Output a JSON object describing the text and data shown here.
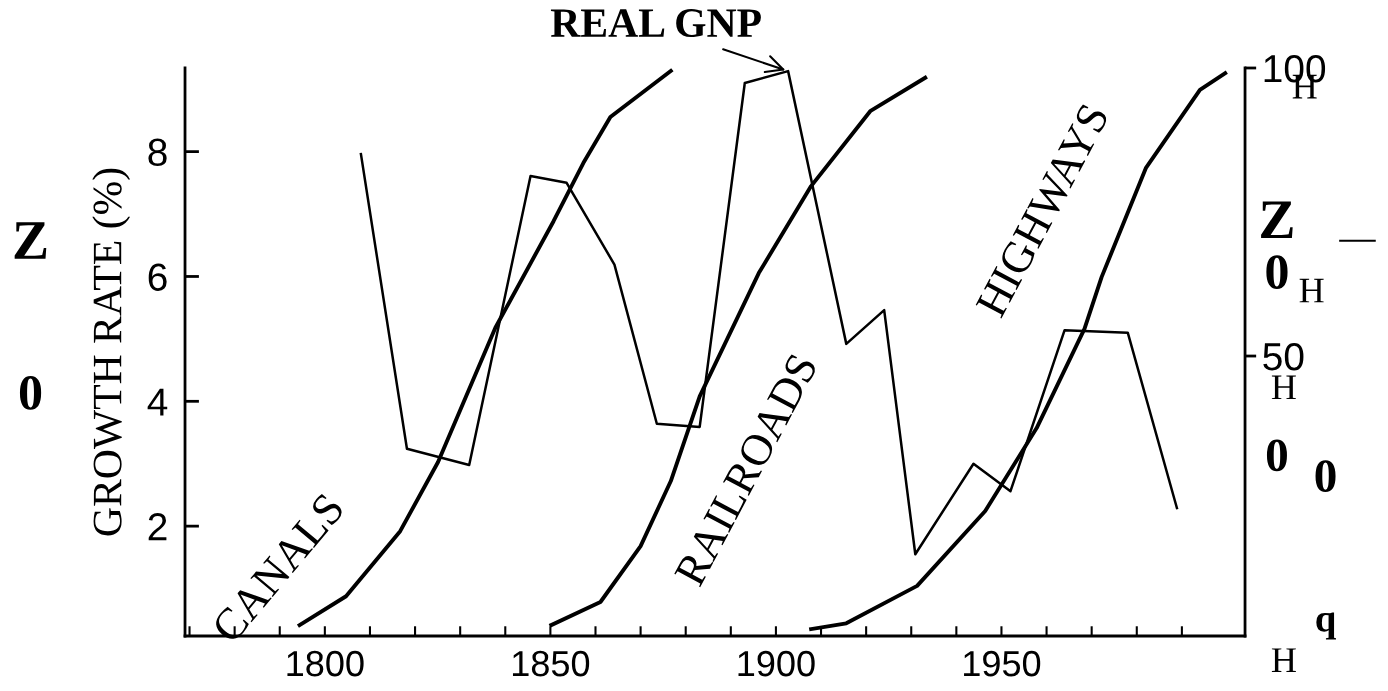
{
  "chart_data": {
    "type": "line",
    "ylabel": "GROWTH RATE (%)",
    "annotations": [
      "Z",
      "0",
      "H",
      "Z",
      "—",
      "0",
      "H",
      "H",
      "0",
      "0",
      "q",
      "H"
    ],
    "xlim": [
      1769,
      2004
    ],
    "ylim": [
      0.24,
      9.34
    ],
    "y2lim": [
      1.4,
      100
    ],
    "xticks": [
      {
        "value": 1770,
        "label": null
      },
      {
        "value": 1780,
        "label": null
      },
      {
        "value": 1790,
        "label": null
      },
      1800,
      {
        "value": 1810,
        "label": null
      },
      {
        "value": 1820,
        "label": null
      },
      {
        "value": 1830,
        "label": null
      },
      {
        "value": 1840,
        "label": null
      },
      1850,
      {
        "value": 1860,
        "label": null
      },
      {
        "value": 1870,
        "label": null
      },
      {
        "value": 1880,
        "label": null
      },
      {
        "value": 1890,
        "label": null
      },
      1900,
      {
        "value": 1910,
        "label": null
      },
      {
        "value": 1920,
        "label": null
      },
      {
        "value": 1930,
        "label": null
      },
      {
        "value": 1940,
        "label": null
      },
      1950,
      {
        "value": 1960,
        "label": null
      },
      {
        "value": 1970,
        "label": null
      },
      {
        "value": 1980,
        "label": null
      },
      {
        "value": 1990,
        "label": null
      }
    ],
    "yticks": [
      2,
      4,
      6,
      8
    ],
    "y2ticks": [
      50,
      100
    ],
    "grid": false,
    "legend": false,
    "marker": "none",
    "line_style": "solid",
    "series": [
      {
        "name": "REAL GNP",
        "color": "#000000",
        "x": [
          1808.0,
          1818.2,
          1832.0,
          1845.6,
          1853.6,
          1864.2,
          1873.6,
          1883.1,
          1893.1,
          1902.7,
          1915.6,
          1924.0,
          1930.9,
          1943.8,
          1952.0,
          1964.0,
          1978.0,
          1988.9
        ],
        "values": [
          7.96,
          3.24,
          2.98,
          7.61,
          7.5,
          6.19,
          3.64,
          3.59,
          9.1,
          9.29,
          4.92,
          5.46,
          1.55,
          3.0,
          2.56,
          5.14,
          5.1,
          2.29
        ]
      },
      {
        "name": "CANALS",
        "color": "#000000",
        "axis": "y2",
        "x": [
          1794.4,
          1804.7,
          1816.7,
          1825.1,
          1837.8,
          1850.7,
          1857.3,
          1863.3,
          1876.7
        ],
        "values": [
          3.3,
          8.3,
          19.6,
          31.6,
          54.9,
          73.4,
          83.5,
          91.5,
          99.5
        ]
      },
      {
        "name": "RAILROADS",
        "color": "#000000",
        "axis": "y2",
        "x": [
          1850.2,
          1861.1,
          1870.0,
          1876.7,
          1883.1,
          1896.2,
          1907.8,
          1920.9,
          1933.1
        ],
        "values": [
          3.3,
          7.3,
          17,
          28.3,
          43,
          64.4,
          79.5,
          92.5,
          98.3
        ]
      },
      {
        "name": "HIGHWAYS",
        "color": "#000000",
        "axis": "y2",
        "x": [
          1907.8,
          1915.6,
          1931.3,
          1946.4,
          1957.8,
          1968.4,
          1972.2,
          1982.0,
          1994.0,
          1999.6
        ],
        "values": [
          2.6,
          3.6,
          10.1,
          23.1,
          37.5,
          54.7,
          63.7,
          82.6,
          96.2,
          99.1
        ]
      }
    ]
  }
}
